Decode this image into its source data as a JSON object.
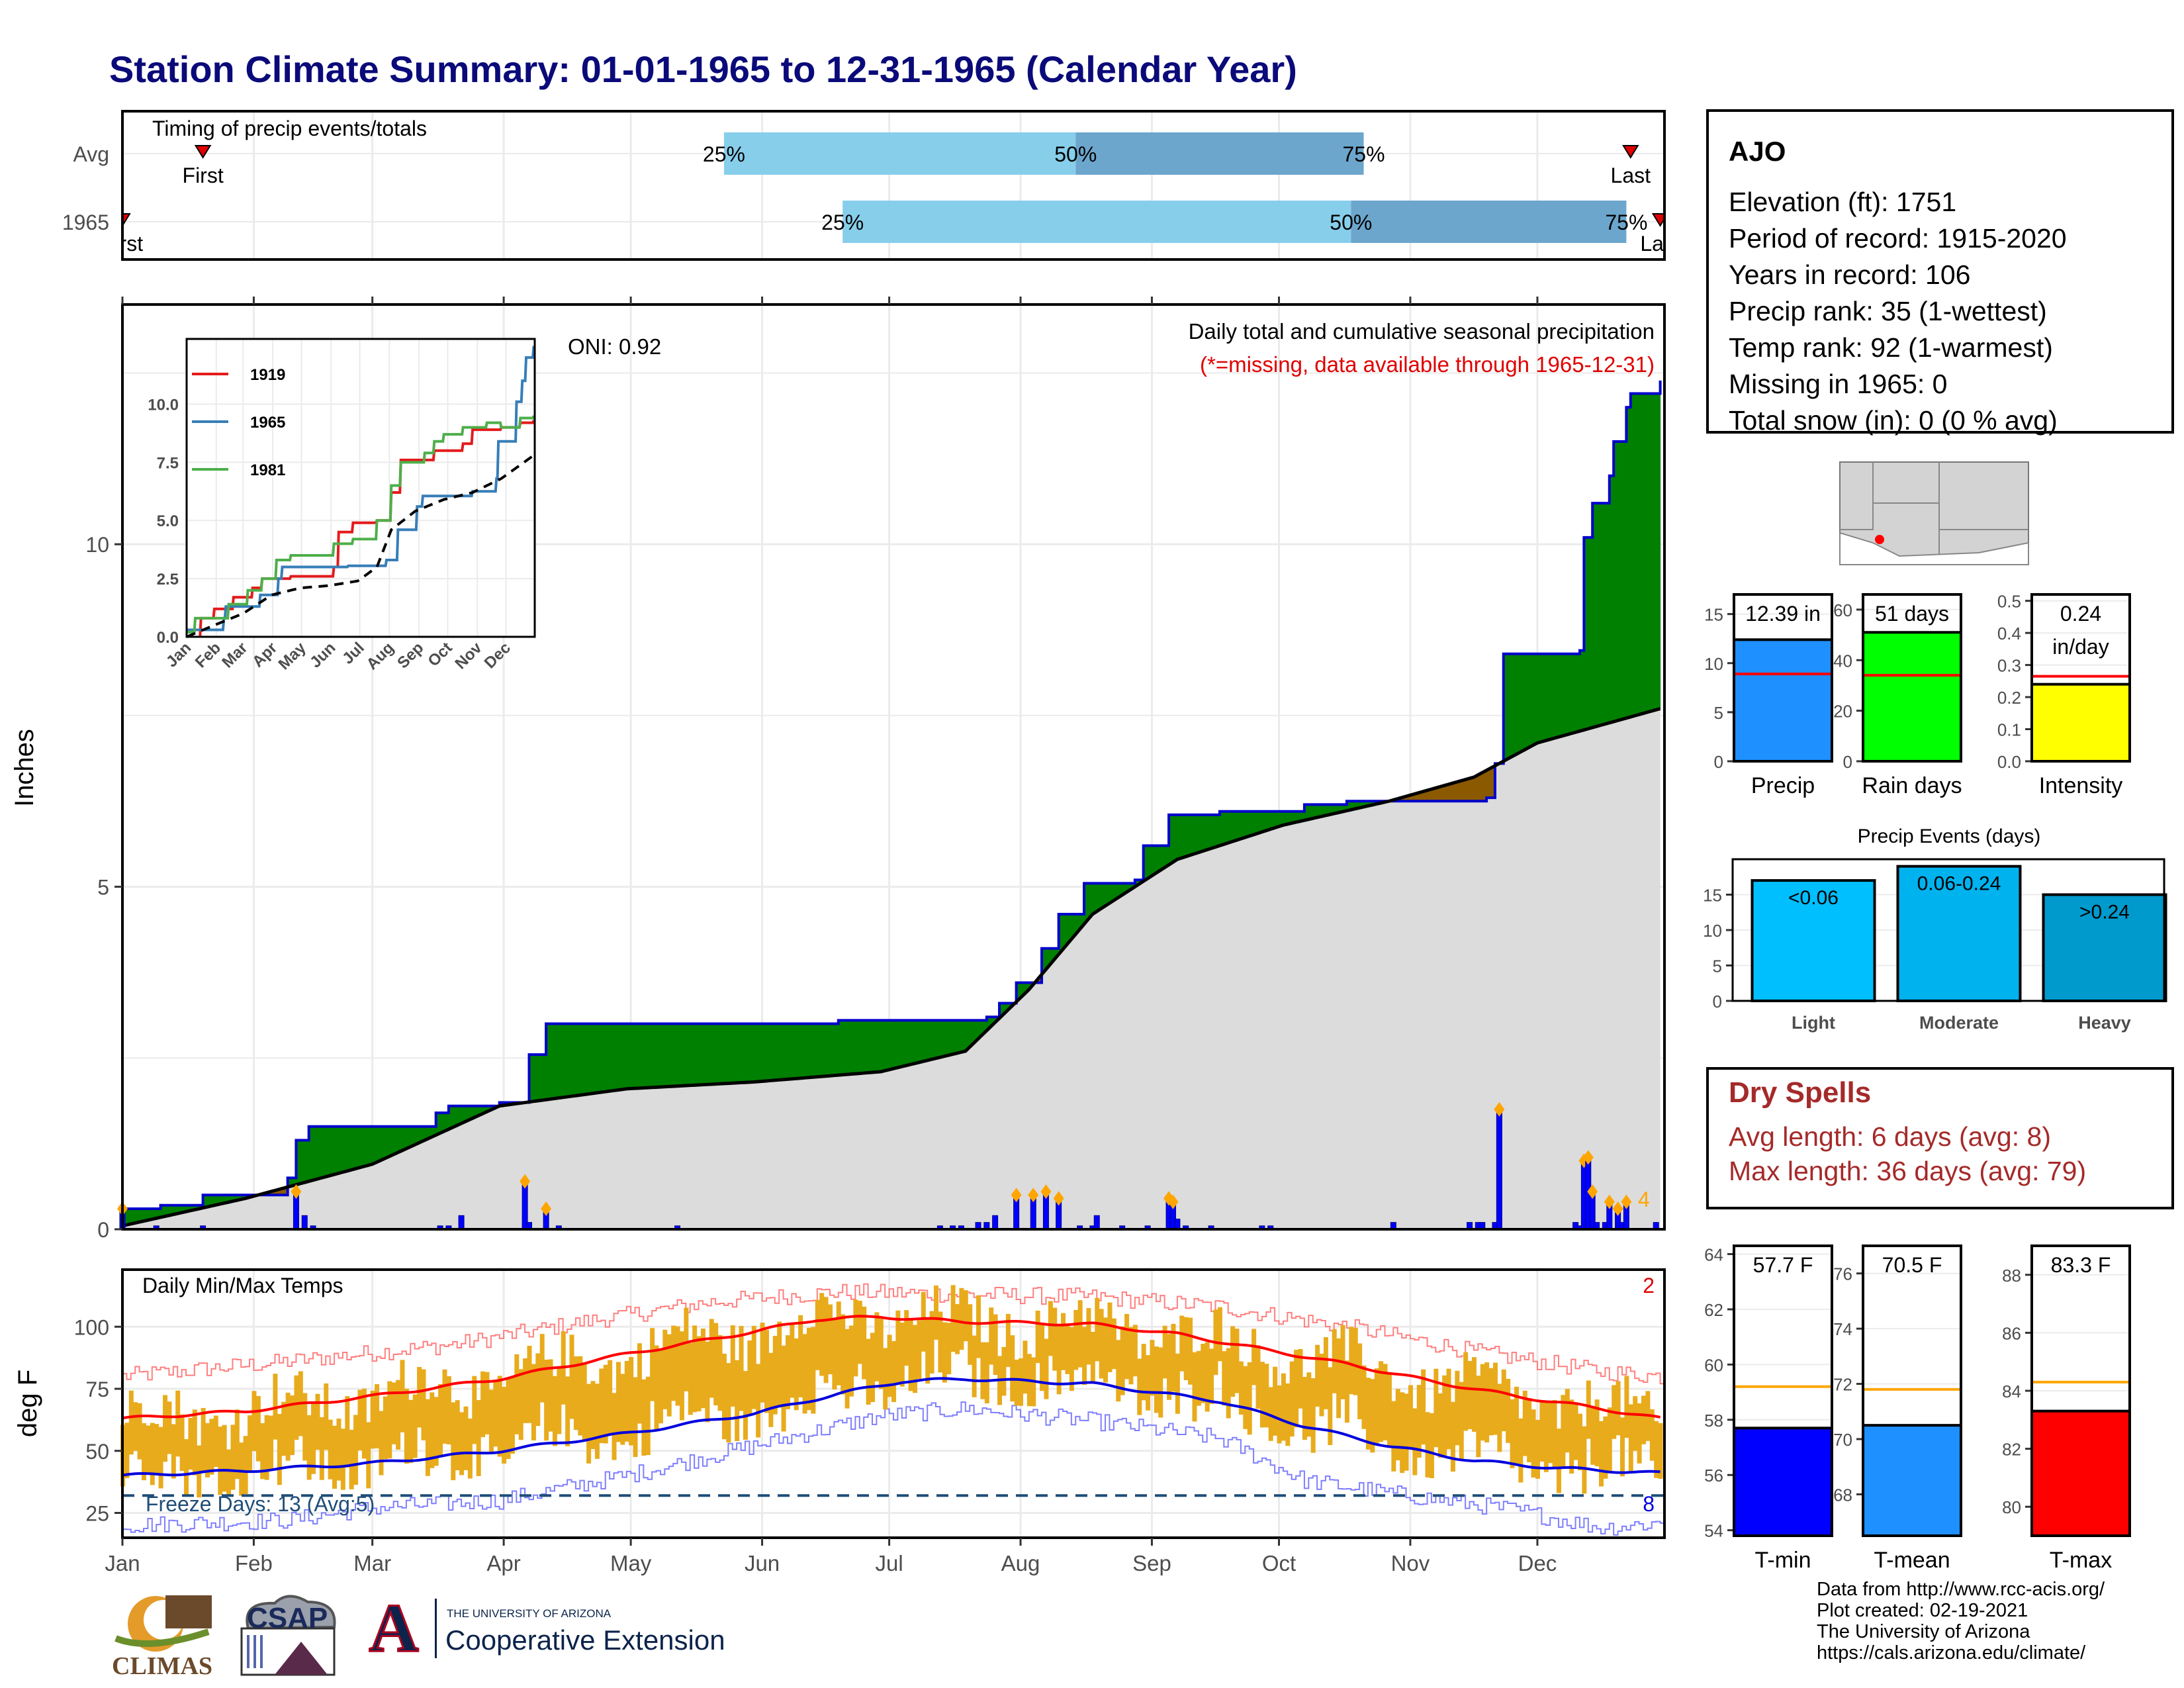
{
  "title": "Station Climate Summary: 01-01-1965 to 12-31-1965 (Calendar Year)",
  "months": [
    "Jan",
    "Feb",
    "Mar",
    "Apr",
    "May",
    "Jun",
    "Jul",
    "Aug",
    "Sep",
    "Oct",
    "Nov",
    "Dec"
  ],
  "timing": {
    "label": "Timing of precip events/totals",
    "rows": [
      {
        "name": "Avg",
        "first_label": "First",
        "last_label": "Last",
        "first_doy": 20,
        "last_doy": 357,
        "q25_doy": 143,
        "q50_doy": 226,
        "q75_doy": 294,
        "q25": "25%",
        "q50": "50%",
        "q75": "75%"
      },
      {
        "name": "1965",
        "first_label": "First",
        "last_label": "Last",
        "first_doy": 1,
        "last_doy": 364,
        "q25_doy": 171,
        "q50_doy": 291,
        "q75_doy": 356,
        "q25": "25%",
        "q50": "50%",
        "q75": "75%"
      }
    ]
  },
  "main": {
    "ylabel": "Inches",
    "yticks": [
      0,
      5,
      10
    ],
    "annotation_title": "Daily total and cumulative seasonal precipitation",
    "annotation_missing": "(*=missing, data available through 1965-12-31)",
    "oni": "ONI: 0.92",
    "rank_label": "4"
  },
  "inset": {
    "legend": [
      "1919",
      "1965",
      "1981"
    ],
    "yticks": [
      "0.0",
      "2.5",
      "5.0",
      "7.5",
      "10.0"
    ],
    "xticks": [
      "Jan",
      "Feb",
      "Mar",
      "Apr",
      "May",
      "Jun",
      "Jul",
      "Aug",
      "Sep",
      "Oct",
      "Nov",
      "Dec"
    ]
  },
  "temp": {
    "ylabel": "deg F",
    "label": "Daily Min/Max Temps",
    "yticks": [
      25,
      50,
      75,
      100
    ],
    "freeze_label": "Freeze Days: 13 (Avg:5)",
    "freeze_count": "8",
    "record_count": "2"
  },
  "info": {
    "station": "AJO",
    "lines": [
      "Elevation (ft): 1751",
      "Period of record: 1915-2020",
      "Years in record: 106",
      "Precip rank: 35 (1-wettest)",
      "Temp rank: 92 (1-warmest)",
      "Missing in 1965: 0",
      "Total snow (in): 0 (0 % avg)"
    ]
  },
  "bars": {
    "precip": {
      "label": "12.39 in",
      "name": "Precip",
      "value": 12.39,
      "avg": 8.9,
      "ymax": 17,
      "ticks": [
        0,
        5,
        10,
        15
      ],
      "color": "#1e90ff"
    },
    "raindays": {
      "label": "51 days",
      "name": "Rain days",
      "value": 51,
      "avg": 34,
      "ymax": 66,
      "ticks": [
        0,
        20,
        40,
        60
      ],
      "color": "#00ff00"
    },
    "intensity": {
      "label1": "0.24",
      "label2": "in/day",
      "name": "Intensity",
      "value": 0.24,
      "avg": 0.265,
      "ymax": 0.52,
      "ticks": [
        "0.0",
        "0.1",
        "0.2",
        "0.3",
        "0.4",
        "0.5"
      ],
      "color": "#ffff00"
    }
  },
  "events": {
    "title": "Precip Events (days)",
    "ticks": [
      0,
      5,
      10,
      15
    ],
    "items": [
      {
        "name": "Light",
        "label": "<0.06",
        "value": 17,
        "color": "#00bfff"
      },
      {
        "name": "Moderate",
        "label": "0.06-0.24",
        "value": 19,
        "color": "#00b2ee"
      },
      {
        "name": "Heavy",
        "label": ">0.24",
        "value": 15,
        "color": "#009acd"
      }
    ]
  },
  "dry": {
    "title": "Dry Spells",
    "avg_line": "Avg length: 6 days (avg: 8)",
    "max_line": "Max length: 36 days (avg: 79)"
  },
  "tbars": {
    "tmin": {
      "label": "57.7 F",
      "name": "T-min",
      "value": 57.7,
      "avg": 59.2,
      "ymin": 53.8,
      "ymax": 64.3,
      "ticks": [
        54,
        56,
        58,
        60,
        62,
        64
      ],
      "color": "#0000ff"
    },
    "tmean": {
      "label": "70.5 F",
      "name": "T-mean",
      "value": 70.5,
      "avg": 71.8,
      "ymin": 66.5,
      "ymax": 77.0,
      "ticks": [
        68,
        70,
        72,
        74,
        76
      ],
      "color": "#1e90ff"
    },
    "tmax": {
      "label": "83.3 F",
      "name": "T-max",
      "value": 83.3,
      "avg": 84.3,
      "ymin": 79.0,
      "ymax": 89.0,
      "ticks": [
        80,
        82,
        84,
        86,
        88
      ],
      "color": "#ff0000"
    }
  },
  "footer": {
    "lines": [
      "Data from http://www.rcc-acis.org/",
      "Plot created: 02-19-2021",
      "The University of Arizona",
      "https://cals.arizona.edu/climate/"
    ]
  },
  "logos": {
    "climas": "CLIMAS",
    "csap": "CSAP",
    "ua_small": "THE UNIVERSITY OF ARIZONA",
    "ua_big": "Cooperative Extension",
    "ua_letter": "A"
  },
  "chart_data": {
    "type": "area",
    "title": "Station Climate Summary: 01-01-1965 to 12-31-1965 (Calendar Year)",
    "ylabel": "Inches",
    "ylim": [
      0,
      13.5
    ],
    "series": [
      {
        "name": "1965 cumulative",
        "points": [
          [
            1,
            0.3
          ],
          [
            10,
            0.35
          ],
          [
            20,
            0.5
          ],
          [
            40,
            0.75
          ],
          [
            42,
            1.3
          ],
          [
            45,
            1.5
          ],
          [
            60,
            1.5
          ],
          [
            75,
            1.7
          ],
          [
            78,
            1.8
          ],
          [
            90,
            1.85
          ],
          [
            97,
            2.55
          ],
          [
            101,
            3.0
          ],
          [
            120,
            3.0
          ],
          [
            150,
            3.0
          ],
          [
            170,
            3.05
          ],
          [
            205,
            3.1
          ],
          [
            208,
            3.3
          ],
          [
            212,
            3.6
          ],
          [
            218,
            4.1
          ],
          [
            222,
            4.6
          ],
          [
            228,
            5.05
          ],
          [
            240,
            5.1
          ],
          [
            242,
            5.6
          ],
          [
            248,
            6.05
          ],
          [
            260,
            6.1
          ],
          [
            280,
            6.2
          ],
          [
            290,
            6.25
          ],
          [
            300,
            6.25
          ],
          [
            315,
            6.25
          ],
          [
            323,
            6.3
          ],
          [
            325,
            6.8
          ],
          [
            327,
            8.4
          ],
          [
            345,
            8.45
          ],
          [
            346,
            10.1
          ],
          [
            348,
            10.6
          ],
          [
            352,
            11.0
          ],
          [
            353,
            11.5
          ],
          [
            356,
            12.0
          ],
          [
            357,
            12.2
          ],
          [
            364,
            12.39
          ]
        ]
      },
      {
        "name": "average cumulative",
        "points": [
          [
            1,
            0.05
          ],
          [
            30,
            0.45
          ],
          [
            60,
            0.95
          ],
          [
            90,
            1.8
          ],
          [
            120,
            2.05
          ],
          [
            150,
            2.15
          ],
          [
            180,
            2.3
          ],
          [
            200,
            2.6
          ],
          [
            215,
            3.5
          ],
          [
            230,
            4.6
          ],
          [
            250,
            5.4
          ],
          [
            275,
            5.9
          ],
          [
            300,
            6.25
          ],
          [
            320,
            6.6
          ],
          [
            335,
            7.1
          ],
          [
            364,
            7.6
          ]
        ]
      }
    ],
    "daily_precip": [
      [
        1,
        0.3
      ],
      [
        9,
        0.05
      ],
      [
        20,
        0.05
      ],
      [
        42,
        0.55
      ],
      [
        44,
        0.2
      ],
      [
        46,
        0.05
      ],
      [
        76,
        0.05
      ],
      [
        78,
        0.05
      ],
      [
        81,
        0.2
      ],
      [
        96,
        0.7
      ],
      [
        97,
        0.1
      ],
      [
        101,
        0.3
      ],
      [
        104,
        0.05
      ],
      [
        132,
        0.05
      ],
      [
        194,
        0.05
      ],
      [
        197,
        0.05
      ],
      [
        199,
        0.05
      ],
      [
        203,
        0.1
      ],
      [
        205,
        0.1
      ],
      [
        207,
        0.2
      ],
      [
        212,
        0.5
      ],
      [
        216,
        0.5
      ],
      [
        219,
        0.55
      ],
      [
        222,
        0.45
      ],
      [
        227,
        0.05
      ],
      [
        230,
        0.05
      ],
      [
        231,
        0.2
      ],
      [
        237,
        0.05
      ],
      [
        243,
        0.05
      ],
      [
        248,
        0.45
      ],
      [
        249,
        0.4
      ],
      [
        250,
        0.15
      ],
      [
        252,
        0.05
      ],
      [
        258,
        0.05
      ],
      [
        270,
        0.05
      ],
      [
        272,
        0.05
      ],
      [
        301,
        0.1
      ],
      [
        319,
        0.1
      ],
      [
        321,
        0.1
      ],
      [
        322,
        0.1
      ],
      [
        325,
        0.1
      ],
      [
        326,
        1.75
      ],
      [
        344,
        0.1
      ],
      [
        345,
        0.05
      ],
      [
        346,
        1.0
      ],
      [
        347,
        1.05
      ],
      [
        348,
        0.55
      ],
      [
        349,
        0.1
      ],
      [
        351,
        0.1
      ],
      [
        352,
        0.4
      ],
      [
        354,
        0.3
      ],
      [
        355,
        0.1
      ],
      [
        356,
        0.4
      ],
      [
        363,
        0.1
      ]
    ],
    "inset_series": [
      {
        "name": "1919",
        "points": [
          [
            15,
            0
          ],
          [
            16,
            0.8
          ],
          [
            30,
            1.2
          ],
          [
            50,
            1.7
          ],
          [
            70,
            2.1
          ],
          [
            80,
            2.5
          ],
          [
            110,
            2.6
          ],
          [
            145,
            2.6
          ],
          [
            155,
            3.0
          ],
          [
            160,
            4.5
          ],
          [
            175,
            4.9
          ],
          [
            200,
            5.0
          ],
          [
            215,
            6.2
          ],
          [
            225,
            7.6
          ],
          [
            260,
            8.0
          ],
          [
            290,
            8.3
          ],
          [
            300,
            8.9
          ],
          [
            330,
            9.0
          ],
          [
            350,
            9.2
          ],
          [
            364,
            9.3
          ]
        ]
      },
      {
        "name": "1965",
        "points": [
          [
            1,
            0.3
          ],
          [
            40,
            0.8
          ],
          [
            42,
            1.3
          ],
          [
            78,
            1.8
          ],
          [
            97,
            2.5
          ],
          [
            101,
            3.0
          ],
          [
            170,
            3.05
          ],
          [
            210,
            3.3
          ],
          [
            222,
            4.6
          ],
          [
            242,
            5.6
          ],
          [
            248,
            6.05
          ],
          [
            300,
            6.25
          ],
          [
            325,
            6.8
          ],
          [
            327,
            8.4
          ],
          [
            346,
            10.1
          ],
          [
            352,
            11.0
          ],
          [
            356,
            12.0
          ],
          [
            364,
            12.5
          ]
        ]
      },
      {
        "name": "1981",
        "points": [
          [
            1,
            0.2
          ],
          [
            10,
            0.8
          ],
          [
            45,
            1.4
          ],
          [
            65,
            2.0
          ],
          [
            80,
            2.5
          ],
          [
            95,
            3.3
          ],
          [
            110,
            3.5
          ],
          [
            150,
            3.5
          ],
          [
            155,
            4.0
          ],
          [
            175,
            4.2
          ],
          [
            200,
            5.0
          ],
          [
            215,
            6.5
          ],
          [
            225,
            7.5
          ],
          [
            250,
            7.9
          ],
          [
            260,
            8.4
          ],
          [
            270,
            8.7
          ],
          [
            290,
            9.0
          ],
          [
            315,
            9.2
          ],
          [
            330,
            9.0
          ],
          [
            350,
            9.4
          ],
          [
            364,
            9.5
          ]
        ]
      },
      {
        "name": "Avg",
        "points": [
          [
            1,
            0
          ],
          [
            30,
            0.5
          ],
          [
            60,
            1.0
          ],
          [
            90,
            1.8
          ],
          [
            120,
            2.1
          ],
          [
            150,
            2.2
          ],
          [
            180,
            2.4
          ],
          [
            200,
            3.0
          ],
          [
            215,
            4.6
          ],
          [
            240,
            5.4
          ],
          [
            270,
            5.9
          ],
          [
            300,
            6.2
          ],
          [
            330,
            6.8
          ],
          [
            364,
            7.8
          ]
        ]
      }
    ],
    "temperature": {
      "ylim": [
        15,
        123
      ],
      "normal_max": [
        [
          1,
          63
        ],
        [
          30,
          66
        ],
        [
          60,
          72
        ],
        [
          90,
          79
        ],
        [
          120,
          89
        ],
        [
          150,
          98
        ],
        [
          165,
          103
        ],
        [
          180,
          104
        ],
        [
          200,
          102
        ],
        [
          230,
          101
        ],
        [
          250,
          97
        ],
        [
          270,
          91
        ],
        [
          290,
          85
        ],
        [
          310,
          78
        ],
        [
          330,
          72
        ],
        [
          350,
          67
        ],
        [
          364,
          63
        ]
      ],
      "normal_min": [
        [
          1,
          40
        ],
        [
          30,
          42
        ],
        [
          60,
          45
        ],
        [
          90,
          50
        ],
        [
          120,
          57
        ],
        [
          150,
          65
        ],
        [
          170,
          73
        ],
        [
          185,
          78
        ],
        [
          200,
          79
        ],
        [
          230,
          77
        ],
        [
          260,
          70
        ],
        [
          280,
          60
        ],
        [
          300,
          52
        ],
        [
          320,
          46
        ],
        [
          340,
          43
        ],
        [
          364,
          41
        ]
      ],
      "record_max": [
        [
          1,
          80
        ],
        [
          40,
          86
        ],
        [
          80,
          93
        ],
        [
          110,
          102
        ],
        [
          140,
          110
        ],
        [
          170,
          114
        ],
        [
          200,
          113
        ],
        [
          230,
          112
        ],
        [
          260,
          108
        ],
        [
          290,
          100
        ],
        [
          320,
          90
        ],
        [
          350,
          82
        ],
        [
          364,
          80
        ]
      ],
      "record_min": [
        [
          1,
          20
        ],
        [
          40,
          22
        ],
        [
          60,
          27
        ],
        [
          90,
          30
        ],
        [
          120,
          40
        ],
        [
          150,
          52
        ],
        [
          180,
          64
        ],
        [
          200,
          67
        ],
        [
          230,
          62
        ],
        [
          260,
          55
        ],
        [
          280,
          38
        ],
        [
          300,
          33
        ],
        [
          330,
          26
        ],
        [
          350,
          19
        ],
        [
          364,
          21
        ]
      ],
      "freeze_line": 32
    }
  }
}
